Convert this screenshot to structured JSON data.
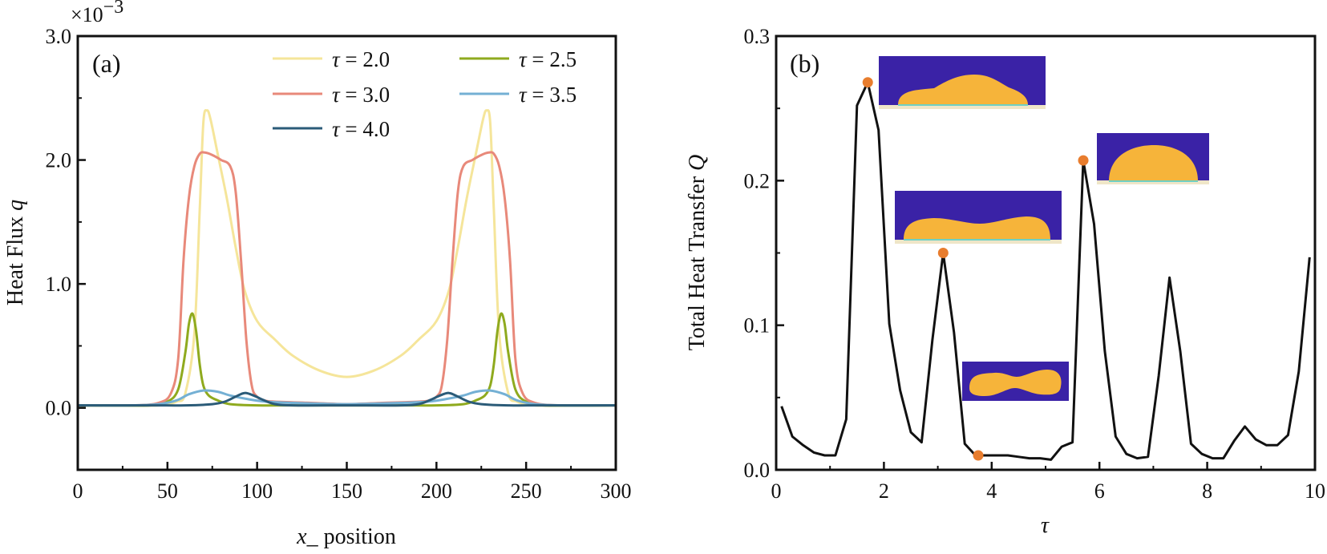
{
  "chart_data": [
    {
      "panel": "(a)",
      "type": "line",
      "xlabel_italic": "x",
      "xlabel_rest": "_ position",
      "ylabel_plain": "Heat Flux ",
      "ylabel_italic": "q",
      "exponent_label": "×10",
      "exponent_power": "−3",
      "xlim": [
        0,
        300
      ],
      "ylim": [
        -0.5,
        3.0
      ],
      "x_ticks": [
        0,
        50,
        100,
        150,
        200,
        250,
        300
      ],
      "x_tick_labels": [
        "0",
        "50",
        "100",
        "150",
        "200",
        "250",
        "300"
      ],
      "y_ticks": [
        0.0,
        1.0,
        2.0,
        3.0
      ],
      "y_tick_labels": [
        "0.0",
        "1.0",
        "2.0",
        "3.0"
      ],
      "series": [
        {
          "name": "τ = 2.0",
          "tau": "τ",
          "value_text": " = 2.0",
          "color": "#F5E59A",
          "x": [
            0,
            30,
            45,
            55,
            60,
            65,
            68,
            70,
            72,
            74,
            78,
            83,
            88,
            93,
            100,
            110,
            120,
            135,
            150,
            165,
            180,
            190,
            200,
            207,
            212,
            217,
            222,
            226,
            228,
            230,
            232,
            235,
            240,
            245,
            255,
            270,
            300
          ],
          "y": [
            0.02,
            0.02,
            0.02,
            0.05,
            0.12,
            0.6,
            1.6,
            2.3,
            2.4,
            2.33,
            2.05,
            1.7,
            1.3,
            0.95,
            0.7,
            0.55,
            0.42,
            0.3,
            0.25,
            0.3,
            0.42,
            0.55,
            0.7,
            0.95,
            1.3,
            1.7,
            2.05,
            2.33,
            2.4,
            2.3,
            1.6,
            0.6,
            0.12,
            0.05,
            0.02,
            0.02,
            0.02
          ]
        },
        {
          "name": "τ = 2.5",
          "tau": "τ",
          "value_text": " = 2.5",
          "color": "#8FAA1E",
          "x": [
            0,
            40,
            50,
            56,
            60,
            62,
            64,
            66,
            68,
            70,
            73,
            78,
            85,
            100,
            120,
            150,
            180,
            200,
            215,
            222,
            227,
            230,
            232,
            234,
            236,
            238,
            240,
            244,
            250,
            260,
            300
          ],
          "y": [
            0.02,
            0.02,
            0.05,
            0.15,
            0.45,
            0.68,
            0.76,
            0.62,
            0.35,
            0.18,
            0.1,
            0.06,
            0.03,
            0.02,
            0.02,
            0.02,
            0.02,
            0.02,
            0.03,
            0.06,
            0.1,
            0.18,
            0.35,
            0.62,
            0.76,
            0.68,
            0.45,
            0.15,
            0.05,
            0.02,
            0.02
          ]
        },
        {
          "name": "τ = 3.0",
          "tau": "τ",
          "value_text": " = 3.0",
          "color": "#E8897A",
          "x": [
            0,
            30,
            45,
            52,
            56,
            59,
            62,
            65,
            68,
            71,
            75,
            80,
            85,
            88,
            91,
            94,
            97,
            100,
            104,
            110,
            130,
            150,
            170,
            190,
            196,
            200,
            203,
            206,
            209,
            212,
            215,
            220,
            225,
            229,
            232,
            235,
            238,
            241,
            244,
            248,
            255,
            270,
            300
          ],
          "y": [
            0.02,
            0.02,
            0.04,
            0.12,
            0.4,
            1.2,
            1.7,
            1.95,
            2.05,
            2.06,
            2.04,
            2.0,
            1.95,
            1.75,
            1.2,
            0.55,
            0.18,
            0.09,
            0.06,
            0.05,
            0.04,
            0.03,
            0.04,
            0.05,
            0.06,
            0.09,
            0.18,
            0.55,
            1.2,
            1.75,
            1.95,
            2.0,
            2.04,
            2.06,
            2.05,
            1.95,
            1.7,
            1.2,
            0.4,
            0.12,
            0.04,
            0.02,
            0.02
          ]
        },
        {
          "name": "τ = 3.5",
          "tau": "τ",
          "value_text": " = 3.5",
          "color": "#74B0D4",
          "x": [
            0,
            30,
            45,
            55,
            62,
            70,
            78,
            85,
            95,
            105,
            120,
            150,
            180,
            195,
            205,
            215,
            222,
            230,
            238,
            245,
            255,
            270,
            300
          ],
          "y": [
            0.02,
            0.02,
            0.03,
            0.06,
            0.11,
            0.14,
            0.13,
            0.1,
            0.07,
            0.05,
            0.04,
            0.03,
            0.04,
            0.05,
            0.07,
            0.1,
            0.13,
            0.14,
            0.11,
            0.06,
            0.03,
            0.02,
            0.02
          ]
        },
        {
          "name": "τ = 4.0",
          "tau": "τ",
          "value_text": " = 4.0",
          "color": "#2B5B78",
          "x": [
            0,
            40,
            60,
            75,
            82,
            88,
            93,
            98,
            104,
            110,
            120,
            150,
            180,
            190,
            196,
            202,
            207,
            212,
            218,
            225,
            240,
            260,
            300
          ],
          "y": [
            0.02,
            0.02,
            0.02,
            0.03,
            0.05,
            0.09,
            0.12,
            0.1,
            0.06,
            0.03,
            0.02,
            0.02,
            0.02,
            0.03,
            0.06,
            0.1,
            0.12,
            0.09,
            0.05,
            0.03,
            0.02,
            0.02,
            0.02
          ]
        }
      ]
    },
    {
      "panel": "(b)",
      "type": "line",
      "xlabel": "τ",
      "ylabel_plain": "Total Heat Transfer ",
      "ylabel_italic": "Q",
      "xlim": [
        0,
        10
      ],
      "ylim": [
        0,
        0.3
      ],
      "x_ticks": [
        0,
        2,
        4,
        6,
        8,
        10
      ],
      "x_tick_labels": [
        "0",
        "2",
        "4",
        "6",
        "8",
        "10"
      ],
      "y_ticks": [
        0.0,
        0.1,
        0.2,
        0.3
      ],
      "y_tick_labels": [
        "0.0",
        "0.1",
        "0.2",
        "0.3"
      ],
      "series": [
        {
          "name": "Q",
          "color": "#111111",
          "x": [
            0.1,
            0.3,
            0.5,
            0.7,
            0.9,
            1.1,
            1.3,
            1.5,
            1.7,
            1.9,
            2.1,
            2.3,
            2.5,
            2.7,
            2.9,
            3.1,
            3.3,
            3.5,
            3.7,
            3.9,
            4.1,
            4.3,
            4.5,
            4.7,
            4.9,
            5.1,
            5.3,
            5.5,
            5.7,
            5.9,
            6.1,
            6.3,
            6.5,
            6.7,
            6.9,
            7.1,
            7.3,
            7.5,
            7.7,
            7.9,
            8.1,
            8.3,
            8.5,
            8.7,
            8.9,
            9.1,
            9.3,
            9.5,
            9.7,
            9.9
          ],
          "y": [
            0.044,
            0.023,
            0.017,
            0.012,
            0.01,
            0.01,
            0.035,
            0.252,
            0.268,
            0.235,
            0.101,
            0.055,
            0.026,
            0.019,
            0.09,
            0.15,
            0.095,
            0.018,
            0.01,
            0.01,
            0.01,
            0.01,
            0.009,
            0.008,
            0.008,
            0.007,
            0.016,
            0.019,
            0.214,
            0.17,
            0.082,
            0.023,
            0.011,
            0.008,
            0.009,
            0.065,
            0.133,
            0.082,
            0.018,
            0.011,
            0.008,
            0.008,
            0.02,
            0.03,
            0.021,
            0.017,
            0.017,
            0.024,
            0.068,
            0.147
          ]
        }
      ],
      "markers": {
        "color": "#E87D2E",
        "points": [
          {
            "x": 1.7,
            "y": 0.268
          },
          {
            "x": 3.1,
            "y": 0.15
          },
          {
            "x": 3.75,
            "y": 0.01
          },
          {
            "x": 5.7,
            "y": 0.214
          }
        ]
      },
      "insets": {
        "background": "#3A22A6",
        "droplet": "#F6B43A",
        "edge": "#6FD0C4"
      }
    }
  ]
}
